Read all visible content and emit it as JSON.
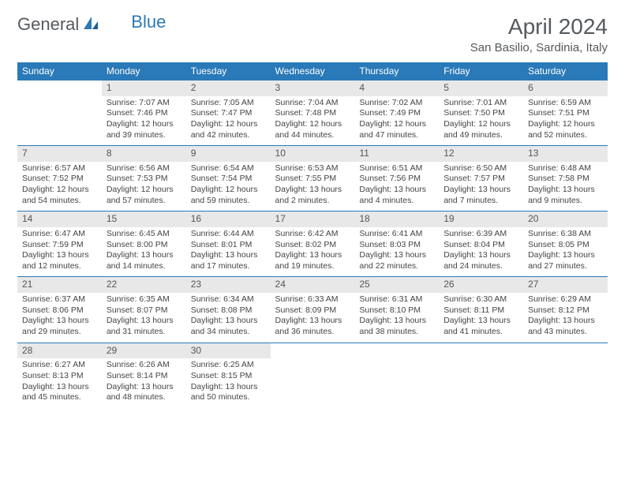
{
  "logo": {
    "general": "General",
    "blue": "Blue"
  },
  "title": "April 2024",
  "location": "San Basilio, Sardinia, Italy",
  "colors": {
    "header_bg": "#2a79b8",
    "header_text": "#ffffff",
    "daynum_bg": "#e8e8e8",
    "border": "#2a79b8",
    "text": "#444444",
    "title_color": "#555a5e"
  },
  "weekdays": [
    "Sunday",
    "Monday",
    "Tuesday",
    "Wednesday",
    "Thursday",
    "Friday",
    "Saturday"
  ],
  "weeks": [
    [
      null,
      {
        "n": "1",
        "sunrise": "Sunrise: 7:07 AM",
        "sunset": "Sunset: 7:46 PM",
        "daylight": "Daylight: 12 hours and 39 minutes."
      },
      {
        "n": "2",
        "sunrise": "Sunrise: 7:05 AM",
        "sunset": "Sunset: 7:47 PM",
        "daylight": "Daylight: 12 hours and 42 minutes."
      },
      {
        "n": "3",
        "sunrise": "Sunrise: 7:04 AM",
        "sunset": "Sunset: 7:48 PM",
        "daylight": "Daylight: 12 hours and 44 minutes."
      },
      {
        "n": "4",
        "sunrise": "Sunrise: 7:02 AM",
        "sunset": "Sunset: 7:49 PM",
        "daylight": "Daylight: 12 hours and 47 minutes."
      },
      {
        "n": "5",
        "sunrise": "Sunrise: 7:01 AM",
        "sunset": "Sunset: 7:50 PM",
        "daylight": "Daylight: 12 hours and 49 minutes."
      },
      {
        "n": "6",
        "sunrise": "Sunrise: 6:59 AM",
        "sunset": "Sunset: 7:51 PM",
        "daylight": "Daylight: 12 hours and 52 minutes."
      }
    ],
    [
      {
        "n": "7",
        "sunrise": "Sunrise: 6:57 AM",
        "sunset": "Sunset: 7:52 PM",
        "daylight": "Daylight: 12 hours and 54 minutes."
      },
      {
        "n": "8",
        "sunrise": "Sunrise: 6:56 AM",
        "sunset": "Sunset: 7:53 PM",
        "daylight": "Daylight: 12 hours and 57 minutes."
      },
      {
        "n": "9",
        "sunrise": "Sunrise: 6:54 AM",
        "sunset": "Sunset: 7:54 PM",
        "daylight": "Daylight: 12 hours and 59 minutes."
      },
      {
        "n": "10",
        "sunrise": "Sunrise: 6:53 AM",
        "sunset": "Sunset: 7:55 PM",
        "daylight": "Daylight: 13 hours and 2 minutes."
      },
      {
        "n": "11",
        "sunrise": "Sunrise: 6:51 AM",
        "sunset": "Sunset: 7:56 PM",
        "daylight": "Daylight: 13 hours and 4 minutes."
      },
      {
        "n": "12",
        "sunrise": "Sunrise: 6:50 AM",
        "sunset": "Sunset: 7:57 PM",
        "daylight": "Daylight: 13 hours and 7 minutes."
      },
      {
        "n": "13",
        "sunrise": "Sunrise: 6:48 AM",
        "sunset": "Sunset: 7:58 PM",
        "daylight": "Daylight: 13 hours and 9 minutes."
      }
    ],
    [
      {
        "n": "14",
        "sunrise": "Sunrise: 6:47 AM",
        "sunset": "Sunset: 7:59 PM",
        "daylight": "Daylight: 13 hours and 12 minutes."
      },
      {
        "n": "15",
        "sunrise": "Sunrise: 6:45 AM",
        "sunset": "Sunset: 8:00 PM",
        "daylight": "Daylight: 13 hours and 14 minutes."
      },
      {
        "n": "16",
        "sunrise": "Sunrise: 6:44 AM",
        "sunset": "Sunset: 8:01 PM",
        "daylight": "Daylight: 13 hours and 17 minutes."
      },
      {
        "n": "17",
        "sunrise": "Sunrise: 6:42 AM",
        "sunset": "Sunset: 8:02 PM",
        "daylight": "Daylight: 13 hours and 19 minutes."
      },
      {
        "n": "18",
        "sunrise": "Sunrise: 6:41 AM",
        "sunset": "Sunset: 8:03 PM",
        "daylight": "Daylight: 13 hours and 22 minutes."
      },
      {
        "n": "19",
        "sunrise": "Sunrise: 6:39 AM",
        "sunset": "Sunset: 8:04 PM",
        "daylight": "Daylight: 13 hours and 24 minutes."
      },
      {
        "n": "20",
        "sunrise": "Sunrise: 6:38 AM",
        "sunset": "Sunset: 8:05 PM",
        "daylight": "Daylight: 13 hours and 27 minutes."
      }
    ],
    [
      {
        "n": "21",
        "sunrise": "Sunrise: 6:37 AM",
        "sunset": "Sunset: 8:06 PM",
        "daylight": "Daylight: 13 hours and 29 minutes."
      },
      {
        "n": "22",
        "sunrise": "Sunrise: 6:35 AM",
        "sunset": "Sunset: 8:07 PM",
        "daylight": "Daylight: 13 hours and 31 minutes."
      },
      {
        "n": "23",
        "sunrise": "Sunrise: 6:34 AM",
        "sunset": "Sunset: 8:08 PM",
        "daylight": "Daylight: 13 hours and 34 minutes."
      },
      {
        "n": "24",
        "sunrise": "Sunrise: 6:33 AM",
        "sunset": "Sunset: 8:09 PM",
        "daylight": "Daylight: 13 hours and 36 minutes."
      },
      {
        "n": "25",
        "sunrise": "Sunrise: 6:31 AM",
        "sunset": "Sunset: 8:10 PM",
        "daylight": "Daylight: 13 hours and 38 minutes."
      },
      {
        "n": "26",
        "sunrise": "Sunrise: 6:30 AM",
        "sunset": "Sunset: 8:11 PM",
        "daylight": "Daylight: 13 hours and 41 minutes."
      },
      {
        "n": "27",
        "sunrise": "Sunrise: 6:29 AM",
        "sunset": "Sunset: 8:12 PM",
        "daylight": "Daylight: 13 hours and 43 minutes."
      }
    ],
    [
      {
        "n": "28",
        "sunrise": "Sunrise: 6:27 AM",
        "sunset": "Sunset: 8:13 PM",
        "daylight": "Daylight: 13 hours and 45 minutes."
      },
      {
        "n": "29",
        "sunrise": "Sunrise: 6:26 AM",
        "sunset": "Sunset: 8:14 PM",
        "daylight": "Daylight: 13 hours and 48 minutes."
      },
      {
        "n": "30",
        "sunrise": "Sunrise: 6:25 AM",
        "sunset": "Sunset: 8:15 PM",
        "daylight": "Daylight: 13 hours and 50 minutes."
      },
      null,
      null,
      null,
      null
    ]
  ]
}
